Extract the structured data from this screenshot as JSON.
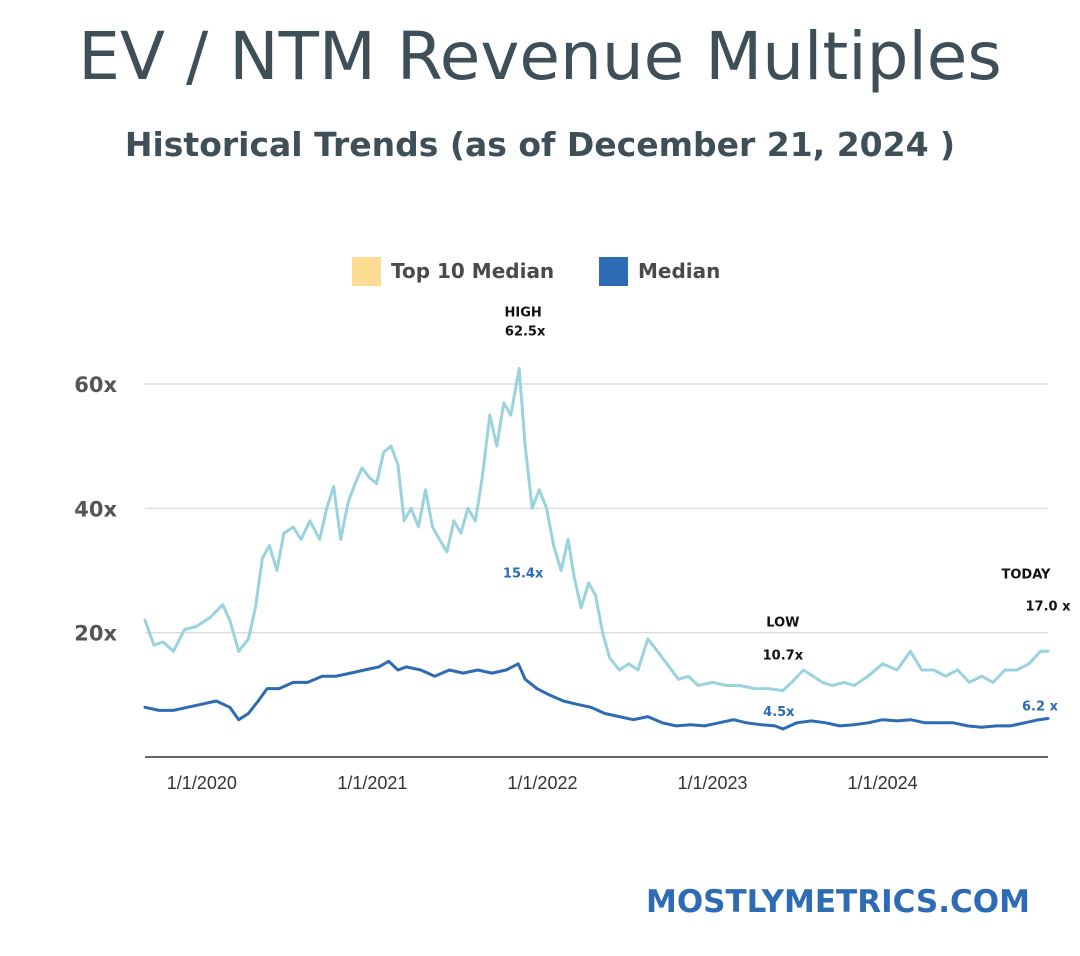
{
  "header": {
    "title": "EV / NTM Revenue Multiples",
    "subtitle": "Historical Trends (as of December 21, 2024 )"
  },
  "footer": {
    "brand": "MOSTLYMETRICS.COM"
  },
  "colors": {
    "top10": "#9ad3de",
    "median": "#2d6cb5",
    "legend_top10": "#fddb93",
    "text": "#3e4f58"
  },
  "chart_data": {
    "type": "line",
    "title": "",
    "xlabel": "",
    "ylabel": "",
    "xlim": [
      "2019-09-01",
      "2024-12-21"
    ],
    "ylim": [
      0,
      62
    ],
    "yticks": [
      {
        "value": 20,
        "label": "20x"
      },
      {
        "value": 40,
        "label": "40x"
      },
      {
        "value": 60,
        "label": "60x"
      }
    ],
    "xticks": [
      {
        "value": "2020-01-01",
        "label": "1/1/2020"
      },
      {
        "value": "2021-01-01",
        "label": "1/1/2021"
      },
      {
        "value": "2022-01-01",
        "label": "1/1/2022"
      },
      {
        "value": "2023-01-01",
        "label": "1/1/2023"
      },
      {
        "value": "2024-01-01",
        "label": "1/1/2024"
      }
    ],
    "grid": "horizontal",
    "legend": "top-center",
    "series": [
      {
        "name": "Top 10 Median",
        "points": [
          [
            "2019-09-01",
            22
          ],
          [
            "2019-09-20",
            18
          ],
          [
            "2019-10-10",
            18.5
          ],
          [
            "2019-11-01",
            17
          ],
          [
            "2019-11-25",
            20.5
          ],
          [
            "2019-12-20",
            21
          ],
          [
            "2020-01-20",
            22.5
          ],
          [
            "2020-02-15",
            24.5
          ],
          [
            "2020-03-01",
            22
          ],
          [
            "2020-03-20",
            17
          ],
          [
            "2020-04-10",
            19
          ],
          [
            "2020-04-25",
            24
          ],
          [
            "2020-05-10",
            32
          ],
          [
            "2020-05-25",
            34
          ],
          [
            "2020-06-10",
            30
          ],
          [
            "2020-06-25",
            36
          ],
          [
            "2020-07-15",
            37
          ],
          [
            "2020-08-01",
            35
          ],
          [
            "2020-08-20",
            38
          ],
          [
            "2020-09-10",
            35
          ],
          [
            "2020-09-25",
            40
          ],
          [
            "2020-10-10",
            43.5
          ],
          [
            "2020-10-25",
            35
          ],
          [
            "2020-11-10",
            41
          ],
          [
            "2020-11-25",
            44
          ],
          [
            "2020-12-10",
            46.5
          ],
          [
            "2020-12-25",
            45
          ],
          [
            "2021-01-10",
            44
          ],
          [
            "2021-01-25",
            49
          ],
          [
            "2021-02-10",
            50
          ],
          [
            "2021-02-25",
            47
          ],
          [
            "2021-03-10",
            38
          ],
          [
            "2021-03-25",
            40
          ],
          [
            "2021-04-10",
            37
          ],
          [
            "2021-04-25",
            43
          ],
          [
            "2021-05-10",
            37
          ],
          [
            "2021-05-25",
            35
          ],
          [
            "2021-06-10",
            33
          ],
          [
            "2021-06-25",
            38
          ],
          [
            "2021-07-10",
            36
          ],
          [
            "2021-07-25",
            40
          ],
          [
            "2021-08-10",
            38
          ],
          [
            "2021-08-25",
            45
          ],
          [
            "2021-09-10",
            55
          ],
          [
            "2021-09-25",
            50
          ],
          [
            "2021-10-10",
            57
          ],
          [
            "2021-10-25",
            55
          ],
          [
            "2021-11-12",
            62.5
          ],
          [
            "2021-11-25",
            50
          ],
          [
            "2021-12-10",
            40
          ],
          [
            "2021-12-25",
            43
          ],
          [
            "2022-01-10",
            40
          ],
          [
            "2022-01-25",
            34
          ],
          [
            "2022-02-10",
            30
          ],
          [
            "2022-02-25",
            35
          ],
          [
            "2022-03-10",
            29
          ],
          [
            "2022-03-25",
            24
          ],
          [
            "2022-04-10",
            28
          ],
          [
            "2022-04-25",
            26
          ],
          [
            "2022-05-10",
            20
          ],
          [
            "2022-05-25",
            16
          ],
          [
            "2022-06-15",
            14
          ],
          [
            "2022-07-05",
            15
          ],
          [
            "2022-07-25",
            14
          ],
          [
            "2022-08-15",
            19
          ],
          [
            "2022-09-05",
            17
          ],
          [
            "2022-09-25",
            15
          ],
          [
            "2022-10-20",
            12.5
          ],
          [
            "2022-11-10",
            13
          ],
          [
            "2022-12-01",
            11.5
          ],
          [
            "2023-01-01",
            12
          ],
          [
            "2023-02-01",
            11.5
          ],
          [
            "2023-03-01",
            11.5
          ],
          [
            "2023-04-01",
            11
          ],
          [
            "2023-05-01",
            11
          ],
          [
            "2023-06-01",
            10.7
          ],
          [
            "2023-06-20",
            12
          ],
          [
            "2023-07-15",
            14
          ],
          [
            "2023-08-05",
            13
          ],
          [
            "2023-08-25",
            12
          ],
          [
            "2023-09-15",
            11.5
          ],
          [
            "2023-10-10",
            12
          ],
          [
            "2023-11-01",
            11.5
          ],
          [
            "2023-12-01",
            13
          ],
          [
            "2024-01-01",
            15
          ],
          [
            "2024-02-01",
            14
          ],
          [
            "2024-03-01",
            17
          ],
          [
            "2024-03-25",
            14
          ],
          [
            "2024-04-20",
            14
          ],
          [
            "2024-05-15",
            13
          ],
          [
            "2024-06-10",
            14
          ],
          [
            "2024-07-05",
            12
          ],
          [
            "2024-08-01",
            13
          ],
          [
            "2024-08-25",
            12
          ],
          [
            "2024-09-20",
            14
          ],
          [
            "2024-10-15",
            14
          ],
          [
            "2024-11-10",
            15
          ],
          [
            "2024-12-05",
            17
          ],
          [
            "2024-12-21",
            17
          ]
        ]
      },
      {
        "name": "Median",
        "points": [
          [
            "2019-09-01",
            8
          ],
          [
            "2019-10-01",
            7.5
          ],
          [
            "2019-11-01",
            7.5
          ],
          [
            "2019-12-01",
            8
          ],
          [
            "2020-01-01",
            8.5
          ],
          [
            "2020-02-01",
            9
          ],
          [
            "2020-03-01",
            8
          ],
          [
            "2020-03-20",
            6
          ],
          [
            "2020-04-10",
            7
          ],
          [
            "2020-05-01",
            9
          ],
          [
            "2020-05-20",
            11
          ],
          [
            "2020-06-15",
            11
          ],
          [
            "2020-07-15",
            12
          ],
          [
            "2020-08-15",
            12
          ],
          [
            "2020-09-15",
            13
          ],
          [
            "2020-10-15",
            13
          ],
          [
            "2020-11-15",
            13.5
          ],
          [
            "2020-12-15",
            14
          ],
          [
            "2021-01-15",
            14.5
          ],
          [
            "2021-02-05",
            15.4
          ],
          [
            "2021-02-25",
            14
          ],
          [
            "2021-03-15",
            14.5
          ],
          [
            "2021-04-15",
            14
          ],
          [
            "2021-05-15",
            13
          ],
          [
            "2021-06-15",
            14
          ],
          [
            "2021-07-15",
            13.5
          ],
          [
            "2021-08-15",
            14
          ],
          [
            "2021-09-15",
            13.5
          ],
          [
            "2021-10-15",
            14
          ],
          [
            "2021-11-10",
            15
          ],
          [
            "2021-11-25",
            12.5
          ],
          [
            "2021-12-20",
            11
          ],
          [
            "2022-01-15",
            10
          ],
          [
            "2022-02-15",
            9
          ],
          [
            "2022-03-15",
            8.5
          ],
          [
            "2022-04-15",
            8
          ],
          [
            "2022-05-15",
            7
          ],
          [
            "2022-06-15",
            6.5
          ],
          [
            "2022-07-15",
            6
          ],
          [
            "2022-08-15",
            6.5
          ],
          [
            "2022-09-15",
            5.5
          ],
          [
            "2022-10-15",
            5
          ],
          [
            "2022-11-15",
            5.2
          ],
          [
            "2022-12-15",
            5
          ],
          [
            "2023-01-15",
            5.5
          ],
          [
            "2023-02-15",
            6
          ],
          [
            "2023-03-15",
            5.5
          ],
          [
            "2023-04-15",
            5.2
          ],
          [
            "2023-05-15",
            5
          ],
          [
            "2023-06-01",
            4.5
          ],
          [
            "2023-07-01",
            5.5
          ],
          [
            "2023-08-01",
            5.8
          ],
          [
            "2023-09-01",
            5.5
          ],
          [
            "2023-10-01",
            5
          ],
          [
            "2023-11-01",
            5.2
          ],
          [
            "2023-12-01",
            5.5
          ],
          [
            "2024-01-01",
            6
          ],
          [
            "2024-02-01",
            5.8
          ],
          [
            "2024-03-01",
            6
          ],
          [
            "2024-04-01",
            5.5
          ],
          [
            "2024-05-01",
            5.5
          ],
          [
            "2024-06-01",
            5.5
          ],
          [
            "2024-07-01",
            5
          ],
          [
            "2024-08-01",
            4.8
          ],
          [
            "2024-09-01",
            5
          ],
          [
            "2024-10-01",
            5
          ],
          [
            "2024-11-01",
            5.5
          ],
          [
            "2024-12-01",
            6
          ],
          [
            "2024-12-21",
            6.2
          ]
        ]
      }
    ],
    "annotations": [
      {
        "id": "high-label",
        "text": "HIGH",
        "x": "2021-11-12",
        "y": 62.5,
        "style": "black"
      },
      {
        "id": "high-value",
        "text": "62.5x",
        "x": "2021-11-12",
        "y": 62.5,
        "style": "black"
      },
      {
        "id": "median-high",
        "text": "15.4x",
        "x": "2021-11-12",
        "y": 15.4,
        "style": "blue"
      },
      {
        "id": "low-label",
        "text": "LOW",
        "x": "2023-06-01",
        "y": 10.7,
        "style": "black"
      },
      {
        "id": "low-value",
        "text": "10.7x",
        "x": "2023-06-01",
        "y": 10.7,
        "style": "black"
      },
      {
        "id": "median-low",
        "text": "4.5x",
        "x": "2023-06-01",
        "y": 4.5,
        "style": "blue"
      },
      {
        "id": "today-label",
        "text": "TODAY",
        "x": "2024-12-21",
        "y": 17.0,
        "style": "black"
      },
      {
        "id": "today-value",
        "text": "17.0 x",
        "x": "2024-12-21",
        "y": 17.0,
        "style": "black"
      },
      {
        "id": "median-today",
        "text": "6.2 x",
        "x": "2024-12-21",
        "y": 6.2,
        "style": "blue"
      }
    ]
  }
}
